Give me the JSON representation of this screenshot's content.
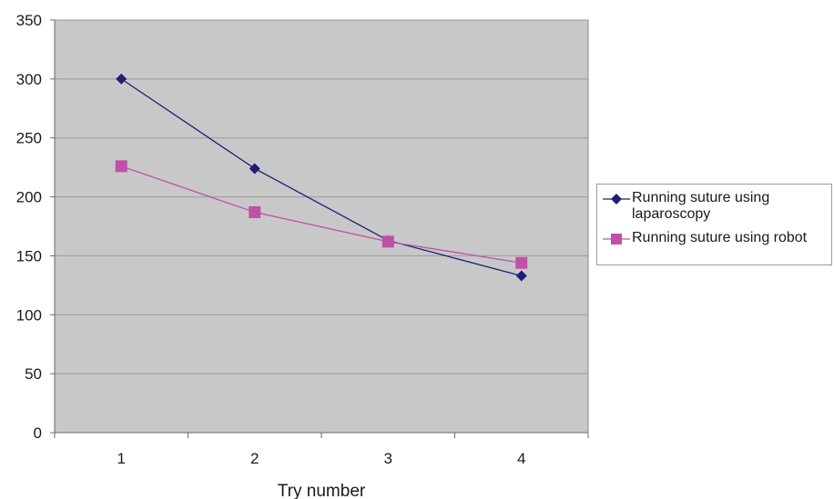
{
  "chart_data": {
    "type": "line",
    "categories": [
      "1",
      "2",
      "3",
      "4"
    ],
    "x": [
      1,
      2,
      3,
      4
    ],
    "series": [
      {
        "name": "Running suture using laparoscopy",
        "values": [
          300,
          224,
          163,
          133
        ],
        "color": "#1f1f7a",
        "marker": "diamond"
      },
      {
        "name": "Running suture using robot",
        "values": [
          226,
          187,
          162,
          144
        ],
        "color": "#c050a8",
        "marker": "square"
      }
    ],
    "title": "",
    "xlabel": "Try number",
    "ylabel": "",
    "ylim": [
      0,
      350
    ],
    "yticks": [
      0,
      50,
      100,
      150,
      200,
      250,
      300,
      350
    ],
    "grid": true,
    "plot_background": "#c8c8c8",
    "gridline_color": "#9a9a9a",
    "legend_position": "right"
  }
}
